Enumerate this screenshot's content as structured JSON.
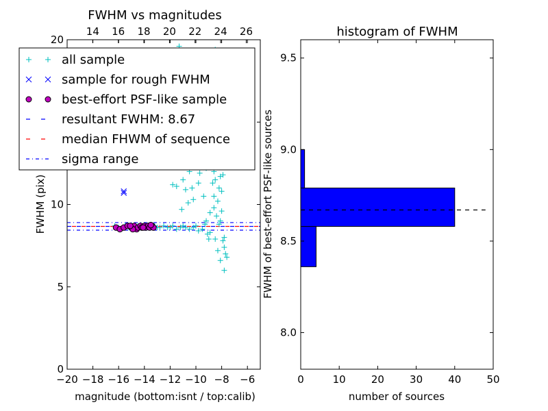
{
  "chart_data": [
    {
      "type": "scatter",
      "title": "FWHM vs magnitudes",
      "xlabel": "magnitude (bottom:isnt / top:calib)",
      "ylabel": "FWHM (pix)",
      "xlim": [
        -20,
        -5
      ],
      "ylim": [
        0,
        20
      ],
      "top_xlim": [
        12,
        27.1
      ],
      "xticks": [
        "−20",
        "−18",
        "−16",
        "−14",
        "−12",
        "−10",
        "−8",
        "−6"
      ],
      "yticks": [
        "0",
        "5",
        "10",
        "15",
        "20"
      ],
      "top_xticks": [
        "14",
        "16",
        "18",
        "20",
        "22",
        "24",
        "26"
      ],
      "legend_position": "upper-left",
      "legend": [
        "all sample",
        "sample for rough FWHM",
        "best-effort PSF-like sample",
        "resultant FWHM: 8.67",
        "median FHWM of sequence",
        "sigma range"
      ],
      "series": [
        {
          "name": "all sample",
          "marker": "plus",
          "color": "#00bfbf",
          "points": [
            [
              -16.3,
              8.7
            ],
            [
              -16.0,
              8.6
            ],
            [
              -15.8,
              8.5
            ],
            [
              -15.5,
              8.7
            ],
            [
              -15.2,
              8.6
            ],
            [
              -15.0,
              8.7
            ],
            [
              -14.8,
              8.6
            ],
            [
              -14.5,
              8.7
            ],
            [
              -14.2,
              8.6
            ],
            [
              -14.0,
              8.7
            ],
            [
              -13.8,
              8.6
            ],
            [
              -13.5,
              8.6
            ],
            [
              -13.2,
              8.7
            ],
            [
              -13.0,
              8.6
            ],
            [
              -12.8,
              8.6
            ],
            [
              -12.5,
              8.7
            ],
            [
              -12.2,
              8.6
            ],
            [
              -12.0,
              8.6
            ],
            [
              -11.8,
              8.7
            ],
            [
              -11.5,
              8.5
            ],
            [
              -11.2,
              8.6
            ],
            [
              -11.0,
              8.7
            ],
            [
              -10.8,
              8.6
            ],
            [
              -10.5,
              8.5
            ],
            [
              -10.2,
              8.6
            ],
            [
              -10.0,
              8.7
            ],
            [
              -9.8,
              8.4
            ],
            [
              -9.5,
              8.5
            ],
            [
              -9.3,
              8.8
            ],
            [
              -9.1,
              8.2
            ],
            [
              -11.8,
              11.2
            ],
            [
              -11.5,
              11.1
            ],
            [
              -11.0,
              11.5
            ],
            [
              -10.8,
              10.9
            ],
            [
              -10.5,
              12.0
            ],
            [
              -10.3,
              11.0
            ],
            [
              -10.0,
              12.5
            ],
            [
              -9.8,
              11.3
            ],
            [
              -9.6,
              13.0
            ],
            [
              -9.4,
              10.5
            ],
            [
              -9.2,
              12.2
            ],
            [
              -9.0,
              13.5
            ],
            [
              -8.9,
              9.5
            ],
            [
              -8.7,
              14.0
            ],
            [
              -8.6,
              9.8
            ],
            [
              -8.5,
              12.8
            ],
            [
              -8.4,
              15.0
            ],
            [
              -8.3,
              10.2
            ],
            [
              -8.2,
              16.0
            ],
            [
              -8.1,
              9.0
            ],
            [
              -8.0,
              13.8
            ],
            [
              -7.9,
              11.8
            ],
            [
              -7.8,
              8.0
            ],
            [
              -7.7,
              14.5
            ],
            [
              -11.3,
              19.6
            ],
            [
              -10.5,
              19.2
            ],
            [
              -10.0,
              18.5
            ],
            [
              -9.5,
              17.5
            ],
            [
              -9.2,
              16.8
            ],
            [
              -8.8,
              17.2
            ],
            [
              -8.5,
              19.4
            ],
            [
              -8.3,
              18.0
            ],
            [
              -8.0,
              16.5
            ],
            [
              -7.9,
              15.5
            ],
            [
              -8.6,
              12.0
            ],
            [
              -8.5,
              11.5
            ],
            [
              -8.4,
              13.2
            ],
            [
              -8.3,
              12.5
            ],
            [
              -8.2,
              11.0
            ],
            [
              -8.1,
              14.2
            ],
            [
              -8.0,
              12.3
            ],
            [
              -8.0,
              10.8
            ],
            [
              -7.9,
              13.0
            ],
            [
              -7.8,
              12.8
            ],
            [
              -8.7,
              11.3
            ],
            [
              -8.8,
              13.1
            ],
            [
              -8.6,
              10.5
            ],
            [
              -8.4,
              9.3
            ],
            [
              -8.2,
              8.8
            ],
            [
              -8.0,
              9.6
            ],
            [
              -7.9,
              7.8
            ],
            [
              -7.8,
              7.4
            ],
            [
              -7.7,
              7.0
            ],
            [
              -8.1,
              6.6
            ],
            [
              -7.8,
              6.0
            ],
            [
              -7.6,
              6.8
            ],
            [
              -8.3,
              7.2
            ],
            [
              -8.5,
              7.9
            ],
            [
              -8.9,
              8.3
            ],
            [
              -9.0,
              7.9
            ],
            [
              -9.2,
              9.0
            ],
            [
              -8.1,
              11.7
            ],
            [
              -8.3,
              14.6
            ],
            [
              -8.6,
              15.8
            ],
            [
              -8.9,
              14.8
            ],
            [
              -9.1,
              15.3
            ],
            [
              -9.3,
              14.1
            ],
            [
              -9.5,
              12.7
            ],
            [
              -9.7,
              11.9
            ],
            [
              -10.2,
              10.3
            ],
            [
              -10.6,
              10.1
            ],
            [
              -11.1,
              9.7
            ]
          ]
        },
        {
          "name": "sample for rough FWHM",
          "marker": "x",
          "color": "#0000ff",
          "points": [
            [
              -15.6,
              10.7
            ],
            [
              -15.6,
              10.8
            ]
          ]
        },
        {
          "name": "best-effort PSF-like sample",
          "marker": "circle",
          "color": "#bf00bf",
          "points": [
            [
              -16.2,
              8.6
            ],
            [
              -15.9,
              8.5
            ],
            [
              -15.6,
              8.6
            ],
            [
              -15.3,
              8.7
            ],
            [
              -15.0,
              8.6
            ],
            [
              -14.8,
              8.7
            ],
            [
              -14.6,
              8.5
            ],
            [
              -14.5,
              8.6
            ],
            [
              -14.3,
              8.7
            ],
            [
              -14.2,
              8.6
            ],
            [
              -14.0,
              8.7
            ],
            [
              -13.9,
              8.6
            ],
            [
              -13.7,
              8.7
            ],
            [
              -13.6,
              8.6
            ],
            [
              -13.4,
              8.7
            ],
            [
              -13.3,
              8.6
            ],
            [
              -14.9,
              8.5
            ],
            [
              -14.1,
              8.6
            ],
            [
              -13.5,
              8.75
            ],
            [
              -15.1,
              8.7
            ]
          ]
        }
      ],
      "hlines": [
        {
          "name": "resultant FWHM: 8.67",
          "y": 8.67,
          "style": "dashed",
          "color": "#0000ff"
        },
        {
          "name": "median FHWM of sequence",
          "y": 8.67,
          "style": "dashed",
          "color": "#ff0000"
        },
        {
          "name": "sigma range",
          "y": 8.9,
          "style": "dashdot",
          "color": "#0000ff"
        },
        {
          "name": "sigma range",
          "y": 8.44,
          "style": "dashdot",
          "color": "#0000ff"
        }
      ]
    },
    {
      "type": "bar",
      "orientation": "horizontal",
      "title": "histogram of FWHM",
      "xlabel": "number of sources",
      "ylabel": "FWHM of best-effort PSF-like sources",
      "xlim": [
        0,
        50
      ],
      "ylim": [
        7.8,
        9.6
      ],
      "xticks": [
        "0",
        "10",
        "20",
        "30",
        "40",
        "50"
      ],
      "yticks": [
        "8.0",
        "8.5",
        "9.0",
        "9.5"
      ],
      "bar_color": "#0000ff",
      "bins": [
        {
          "y0": 8.36,
          "y1": 8.58,
          "count": 4
        },
        {
          "y0": 8.58,
          "y1": 8.79,
          "count": 40
        },
        {
          "y0": 8.79,
          "y1": 9.0,
          "count": 1
        }
      ],
      "reference_line": {
        "y": 8.67,
        "style": "dashed",
        "color": "#000000",
        "x_end": 48
      }
    }
  ]
}
